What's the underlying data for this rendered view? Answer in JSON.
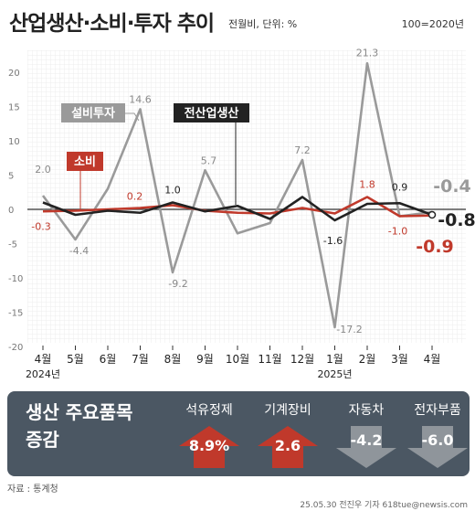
{
  "header": {
    "title": "산업생산·소비·투자 추이",
    "unit": "전월비, 단위: %",
    "base": "100=2020년"
  },
  "chart_data": {
    "type": "line",
    "categories": [
      "4월",
      "5월",
      "6월",
      "7월",
      "8월",
      "9월",
      "10월",
      "11월",
      "12월",
      "1월",
      "2월",
      "3월",
      "4월"
    ],
    "year_labels": [
      "2024년",
      "2025년"
    ],
    "yticks": [
      20,
      15,
      10,
      5,
      0,
      -5,
      -10,
      -15,
      -20
    ],
    "ylim": [
      -20,
      22
    ],
    "series": [
      {
        "name": "설비투자",
        "color": "#9a9a9a",
        "values": [
          2.0,
          -4.4,
          3.0,
          14.6,
          -9.2,
          5.7,
          -3.5,
          -2.0,
          7.2,
          -17.2,
          21.3,
          -1.0,
          -0.4
        ]
      },
      {
        "name": "소비",
        "color": "#c0392b",
        "values": [
          -0.3,
          -0.2,
          0.0,
          0.2,
          0.6,
          -0.2,
          -0.5,
          -0.6,
          0.2,
          -0.6,
          1.8,
          -1.0,
          -0.9
        ]
      },
      {
        "name": "전산업생산",
        "color": "#222222",
        "values": [
          1.0,
          -0.8,
          -0.2,
          -0.5,
          1.0,
          -0.3,
          0.5,
          -1.4,
          1.8,
          -1.6,
          0.8,
          0.9,
          -0.8
        ]
      }
    ],
    "point_labels": [
      {
        "series": 0,
        "index": 0,
        "text": "2.0"
      },
      {
        "series": 0,
        "index": 1,
        "text": "-4.4"
      },
      {
        "series": 0,
        "index": 3,
        "text": "14.6"
      },
      {
        "series": 0,
        "index": 4,
        "text": "-9.2"
      },
      {
        "series": 0,
        "index": 5,
        "text": "5.7"
      },
      {
        "series": 0,
        "index": 8,
        "text": "7.2"
      },
      {
        "series": 0,
        "index": 9,
        "text": "-17.2"
      },
      {
        "series": 0,
        "index": 10,
        "text": "21.3"
      },
      {
        "series": 0,
        "index": 12,
        "text": "-0.4"
      },
      {
        "series": 1,
        "index": 0,
        "text": "-0.3"
      },
      {
        "series": 1,
        "index": 3,
        "text": "0.2"
      },
      {
        "series": 1,
        "index": 10,
        "text": "1.8"
      },
      {
        "series": 1,
        "index": 11,
        "text": "-1.0"
      },
      {
        "series": 1,
        "index": 12,
        "text": "-0.9"
      },
      {
        "series": 2,
        "index": 4,
        "text": "1.0"
      },
      {
        "series": 2,
        "index": 9,
        "text": "-1.6"
      },
      {
        "series": 2,
        "index": 11,
        "text": "0.9"
      },
      {
        "series": 2,
        "index": 12,
        "text": "-0.8"
      }
    ]
  },
  "panel": {
    "title": "생산 주요품목 증감",
    "items": [
      {
        "label": "석유정제",
        "value": "8.9%",
        "direction": "up"
      },
      {
        "label": "기계장비",
        "value": "2.6",
        "direction": "up"
      },
      {
        "label": "자동차",
        "value": "-4.2",
        "direction": "down"
      },
      {
        "label": "전자부품",
        "value": "-6.0",
        "direction": "down"
      }
    ]
  },
  "footer": {
    "source": "자료 : 통계청",
    "credit": "25.05.30 전진우 기자 618tue@newsis.com"
  }
}
